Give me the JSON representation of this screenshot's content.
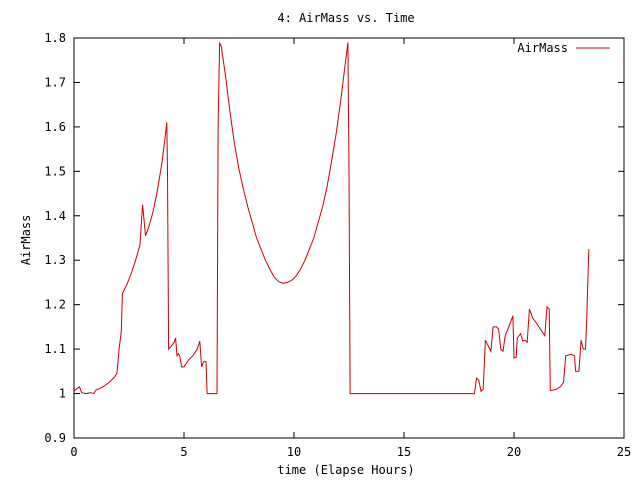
{
  "chart_data": {
    "type": "line",
    "title": "4: AirMass vs. Time",
    "xlabel": "time (Elapse Hours)",
    "ylabel": "AirMass",
    "xlim": [
      0,
      25
    ],
    "ylim": [
      0.9,
      1.8
    ],
    "xticks": [
      "0",
      "5",
      "10",
      "15",
      "20",
      "25"
    ],
    "yticks": [
      "0.9",
      "1",
      "1.1",
      "1.2",
      "1.3",
      "1.4",
      "1.5",
      "1.6",
      "1.7",
      "1.8"
    ],
    "grid": false,
    "legend_position": "top-right",
    "series": [
      {
        "name": "AirMass",
        "color": "#cc0000",
        "points": [
          [
            0.0,
            1.005
          ],
          [
            0.15,
            1.012
          ],
          [
            0.25,
            1.015
          ],
          [
            0.35,
            1.002
          ],
          [
            0.55,
            1.0
          ],
          [
            0.75,
            1.002
          ],
          [
            0.9,
            1.0
          ],
          [
            1.0,
            1.008
          ],
          [
            1.2,
            1.012
          ],
          [
            1.4,
            1.018
          ],
          [
            1.6,
            1.025
          ],
          [
            1.8,
            1.035
          ],
          [
            1.95,
            1.045
          ],
          [
            2.05,
            1.1
          ],
          [
            2.15,
            1.14
          ],
          [
            2.2,
            1.225
          ],
          [
            2.4,
            1.245
          ],
          [
            2.6,
            1.27
          ],
          [
            2.8,
            1.3
          ],
          [
            3.0,
            1.335
          ],
          [
            3.12,
            1.425
          ],
          [
            3.25,
            1.355
          ],
          [
            3.4,
            1.375
          ],
          [
            3.6,
            1.41
          ],
          [
            3.8,
            1.46
          ],
          [
            4.0,
            1.52
          ],
          [
            4.15,
            1.58
          ],
          [
            4.22,
            1.61
          ],
          [
            4.25,
            1.5
          ],
          [
            4.3,
            1.1
          ],
          [
            4.4,
            1.105
          ],
          [
            4.55,
            1.115
          ],
          [
            4.62,
            1.125
          ],
          [
            4.68,
            1.085
          ],
          [
            4.75,
            1.09
          ],
          [
            4.8,
            1.085
          ],
          [
            4.9,
            1.06
          ],
          [
            5.0,
            1.06
          ],
          [
            5.2,
            1.075
          ],
          [
            5.4,
            1.085
          ],
          [
            5.6,
            1.1
          ],
          [
            5.72,
            1.118
          ],
          [
            5.8,
            1.06
          ],
          [
            5.9,
            1.072
          ],
          [
            6.0,
            1.072
          ],
          [
            6.05,
            1.0
          ],
          [
            6.5,
            1.0
          ],
          [
            6.55,
            1.6
          ],
          [
            6.62,
            1.79
          ],
          [
            6.7,
            1.78
          ],
          [
            6.9,
            1.71
          ],
          [
            7.1,
            1.63
          ],
          [
            7.3,
            1.56
          ],
          [
            7.5,
            1.505
          ],
          [
            7.7,
            1.46
          ],
          [
            7.9,
            1.42
          ],
          [
            8.1,
            1.385
          ],
          [
            8.3,
            1.35
          ],
          [
            8.5,
            1.325
          ],
          [
            8.7,
            1.3
          ],
          [
            8.9,
            1.28
          ],
          [
            9.1,
            1.262
          ],
          [
            9.3,
            1.252
          ],
          [
            9.5,
            1.248
          ],
          [
            9.7,
            1.25
          ],
          [
            9.9,
            1.255
          ],
          [
            10.1,
            1.265
          ],
          [
            10.3,
            1.28
          ],
          [
            10.5,
            1.3
          ],
          [
            10.7,
            1.325
          ],
          [
            10.9,
            1.35
          ],
          [
            11.1,
            1.385
          ],
          [
            11.3,
            1.42
          ],
          [
            11.5,
            1.465
          ],
          [
            11.7,
            1.52
          ],
          [
            11.9,
            1.58
          ],
          [
            12.1,
            1.65
          ],
          [
            12.3,
            1.73
          ],
          [
            12.45,
            1.79
          ],
          [
            12.5,
            1.5
          ],
          [
            12.55,
            1.0
          ],
          [
            18.2,
            1.0
          ],
          [
            18.3,
            1.035
          ],
          [
            18.4,
            1.03
          ],
          [
            18.5,
            1.005
          ],
          [
            18.6,
            1.01
          ],
          [
            18.7,
            1.12
          ],
          [
            18.85,
            1.105
          ],
          [
            18.95,
            1.095
          ],
          [
            19.05,
            1.15
          ],
          [
            19.2,
            1.15
          ],
          [
            19.3,
            1.145
          ],
          [
            19.4,
            1.1
          ],
          [
            19.5,
            1.095
          ],
          [
            19.6,
            1.13
          ],
          [
            19.8,
            1.155
          ],
          [
            19.95,
            1.175
          ],
          [
            20.0,
            1.08
          ],
          [
            20.1,
            1.082
          ],
          [
            20.15,
            1.125
          ],
          [
            20.3,
            1.135
          ],
          [
            20.4,
            1.118
          ],
          [
            20.5,
            1.12
          ],
          [
            20.6,
            1.115
          ],
          [
            20.7,
            1.19
          ],
          [
            20.85,
            1.17
          ],
          [
            21.0,
            1.16
          ],
          [
            21.2,
            1.145
          ],
          [
            21.4,
            1.13
          ],
          [
            21.5,
            1.195
          ],
          [
            21.6,
            1.19
          ],
          [
            21.65,
            1.007
          ],
          [
            21.8,
            1.008
          ],
          [
            21.95,
            1.01
          ],
          [
            22.1,
            1.015
          ],
          [
            22.25,
            1.025
          ],
          [
            22.35,
            1.085
          ],
          [
            22.6,
            1.088
          ],
          [
            22.75,
            1.085
          ],
          [
            22.8,
            1.05
          ],
          [
            22.95,
            1.05
          ],
          [
            23.05,
            1.12
          ],
          [
            23.15,
            1.1
          ],
          [
            23.25,
            1.1
          ],
          [
            23.3,
            1.16
          ],
          [
            23.4,
            1.325
          ]
        ]
      }
    ]
  }
}
